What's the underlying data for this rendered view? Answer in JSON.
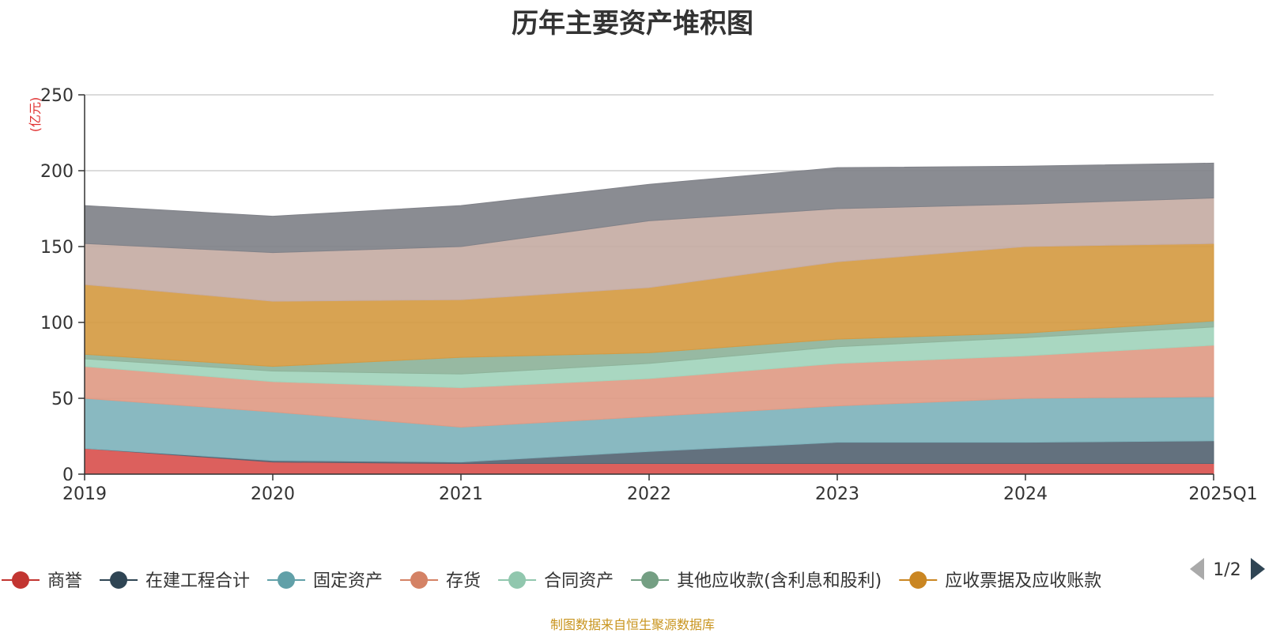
{
  "page": {
    "title": "历年主要资产堆积图",
    "footer": "制图数据来自恒生聚源数据库",
    "pager": "1/2"
  },
  "chart_data": {
    "type": "area",
    "stacked": true,
    "title": "历年主要资产堆积图",
    "ylabel": "(亿元)",
    "ylim": [
      0,
      250
    ],
    "yticks": [
      0,
      50,
      100,
      150,
      200,
      250
    ],
    "grid": true,
    "legend_position": "bottom",
    "categories": [
      "2019",
      "2020",
      "2021",
      "2022",
      "2023",
      "2024",
      "2025Q1"
    ],
    "series": [
      {
        "name": "商誉",
        "values": [
          17,
          8,
          7,
          7,
          7,
          7,
          7
        ],
        "color": "#d9534f",
        "legend_color": "#c23531"
      },
      {
        "name": "在建工程合计",
        "values": [
          0,
          1,
          1,
          8,
          14,
          14,
          15
        ],
        "color": "#566573",
        "legend_color": "#2f4554"
      },
      {
        "name": "固定资产",
        "values": [
          33,
          32,
          23,
          23,
          24,
          29,
          29
        ],
        "color": "#7fb3bc",
        "legend_color": "#61a0a8"
      },
      {
        "name": "存货",
        "values": [
          21,
          20,
          26,
          25,
          28,
          28,
          34
        ],
        "color": "#e09b85",
        "legend_color": "#d48265"
      },
      {
        "name": "合同资产",
        "values": [
          5,
          7,
          9,
          10,
          11,
          12,
          12
        ],
        "color": "#a2d4bc",
        "legend_color": "#91c7ae"
      },
      {
        "name": "其他应收款(含利息和股利)",
        "values": [
          3,
          3,
          11,
          7,
          5,
          3,
          4
        ],
        "color": "#8eb39a",
        "legend_color": "#749f83"
      },
      {
        "name": "应收票据及应收账款",
        "values": [
          46,
          43,
          38,
          43,
          51,
          57,
          51
        ],
        "color": "#d59b43",
        "legend_color": "#ca8622"
      },
      {
        "name": "",
        "values": [
          27,
          32,
          35,
          44,
          35,
          28,
          30
        ],
        "color": "#c6aca4"
      },
      {
        "name": "",
        "values": [
          25,
          24,
          27,
          24,
          27,
          25,
          23
        ],
        "color": "#808289"
      }
    ]
  }
}
